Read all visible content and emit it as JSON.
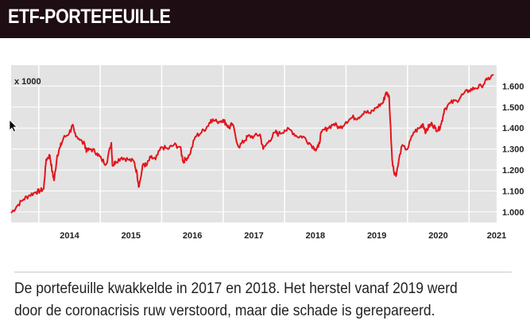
{
  "header": {
    "title": "ETF-PORTEFEUILLE"
  },
  "caption": "De portefeuille kwakkelde in 2017 en 2018. Het herstel vanaf 2019 werd door de coronacrisis ruw verstoord, maar die schade is gerepareerd.",
  "colors": {
    "header_bg": "#1e0d12",
    "line": "#e3141c",
    "plot_bg": "#e3e3e3",
    "grid": "#ffffff"
  },
  "chart_data": {
    "type": "line",
    "unit_label": "x 1000",
    "x_tick_labels": [
      "2014",
      "2015",
      "2016",
      "2017",
      "2018",
      "2019",
      "2020",
      "2021"
    ],
    "y_tick_labels": [
      "1.000",
      "1.100",
      "1.200",
      "1.300",
      "1.400",
      "1.500",
      "1.600"
    ],
    "y_ticks": [
      1000,
      1100,
      1200,
      1300,
      1400,
      1500,
      1600
    ],
    "xlim": [
      2013.55,
      2021.45
    ],
    "ylim": [
      950,
      1700
    ],
    "grid": true,
    "series": [
      {
        "x": [
          2013.55,
          2013.65,
          2013.75,
          2013.85,
          2013.95,
          2014.02,
          2014.08,
          2014.12,
          2014.18,
          2014.22,
          2014.25,
          2014.3,
          2014.35,
          2014.4,
          2014.5,
          2014.55,
          2014.58,
          2014.65,
          2014.75,
          2014.78,
          2014.85,
          2014.95,
          2015.02,
          2015.1,
          2015.18,
          2015.2,
          2015.25,
          2015.35,
          2015.45,
          2015.55,
          2015.6,
          2015.63,
          2015.7,
          2015.75,
          2015.82,
          2015.9,
          2016.0,
          2016.1,
          2016.2,
          2016.3,
          2016.35,
          2016.38,
          2016.45,
          2016.55,
          2016.65,
          2016.75,
          2016.8,
          2016.9,
          2017.0,
          2017.05,
          2017.1,
          2017.15,
          2017.25,
          2017.35,
          2017.4,
          2017.5,
          2017.6,
          2017.65,
          2017.75,
          2017.85,
          2017.9,
          2018.0,
          2018.1,
          2018.2,
          2018.3,
          2018.4,
          2018.5,
          2018.55,
          2018.6,
          2018.7,
          2018.8,
          2018.9,
          2019.0,
          2019.1,
          2019.2,
          2019.3,
          2019.4,
          2019.5,
          2019.6,
          2019.65,
          2019.7,
          2019.75,
          2019.78,
          2019.82,
          2019.9,
          2020.0,
          2020.1,
          2020.2,
          2020.25,
          2020.3,
          2020.35,
          2020.4,
          2020.45,
          2020.5,
          2020.55,
          2020.6,
          2020.7,
          2020.8,
          2020.9,
          2021.0,
          2021.1,
          2021.2,
          2021.3,
          2021.4
        ],
        "values": [
          995,
          1030,
          1060,
          1080,
          1095,
          1100,
          1110,
          1250,
          1270,
          1190,
          1150,
          1270,
          1310,
          1350,
          1380,
          1410,
          1380,
          1350,
          1320,
          1290,
          1300,
          1280,
          1250,
          1230,
          1330,
          1220,
          1240,
          1260,
          1250,
          1240,
          1180,
          1120,
          1230,
          1220,
          1260,
          1250,
          1310,
          1300,
          1320,
          1310,
          1240,
          1250,
          1270,
          1360,
          1380,
          1410,
          1440,
          1430,
          1440,
          1420,
          1400,
          1420,
          1310,
          1340,
          1360,
          1360,
          1370,
          1300,
          1340,
          1380,
          1370,
          1390,
          1390,
          1360,
          1360,
          1330,
          1300,
          1310,
          1380,
          1400,
          1420,
          1400,
          1430,
          1450,
          1450,
          1480,
          1470,
          1500,
          1520,
          1570,
          1550,
          1250,
          1190,
          1180,
          1310,
          1300,
          1380,
          1400,
          1420,
          1380,
          1410,
          1420,
          1400,
          1390,
          1420,
          1490,
          1520,
          1530,
          1560,
          1580,
          1590,
          1600,
          1630,
          1655
        ]
      }
    ]
  }
}
